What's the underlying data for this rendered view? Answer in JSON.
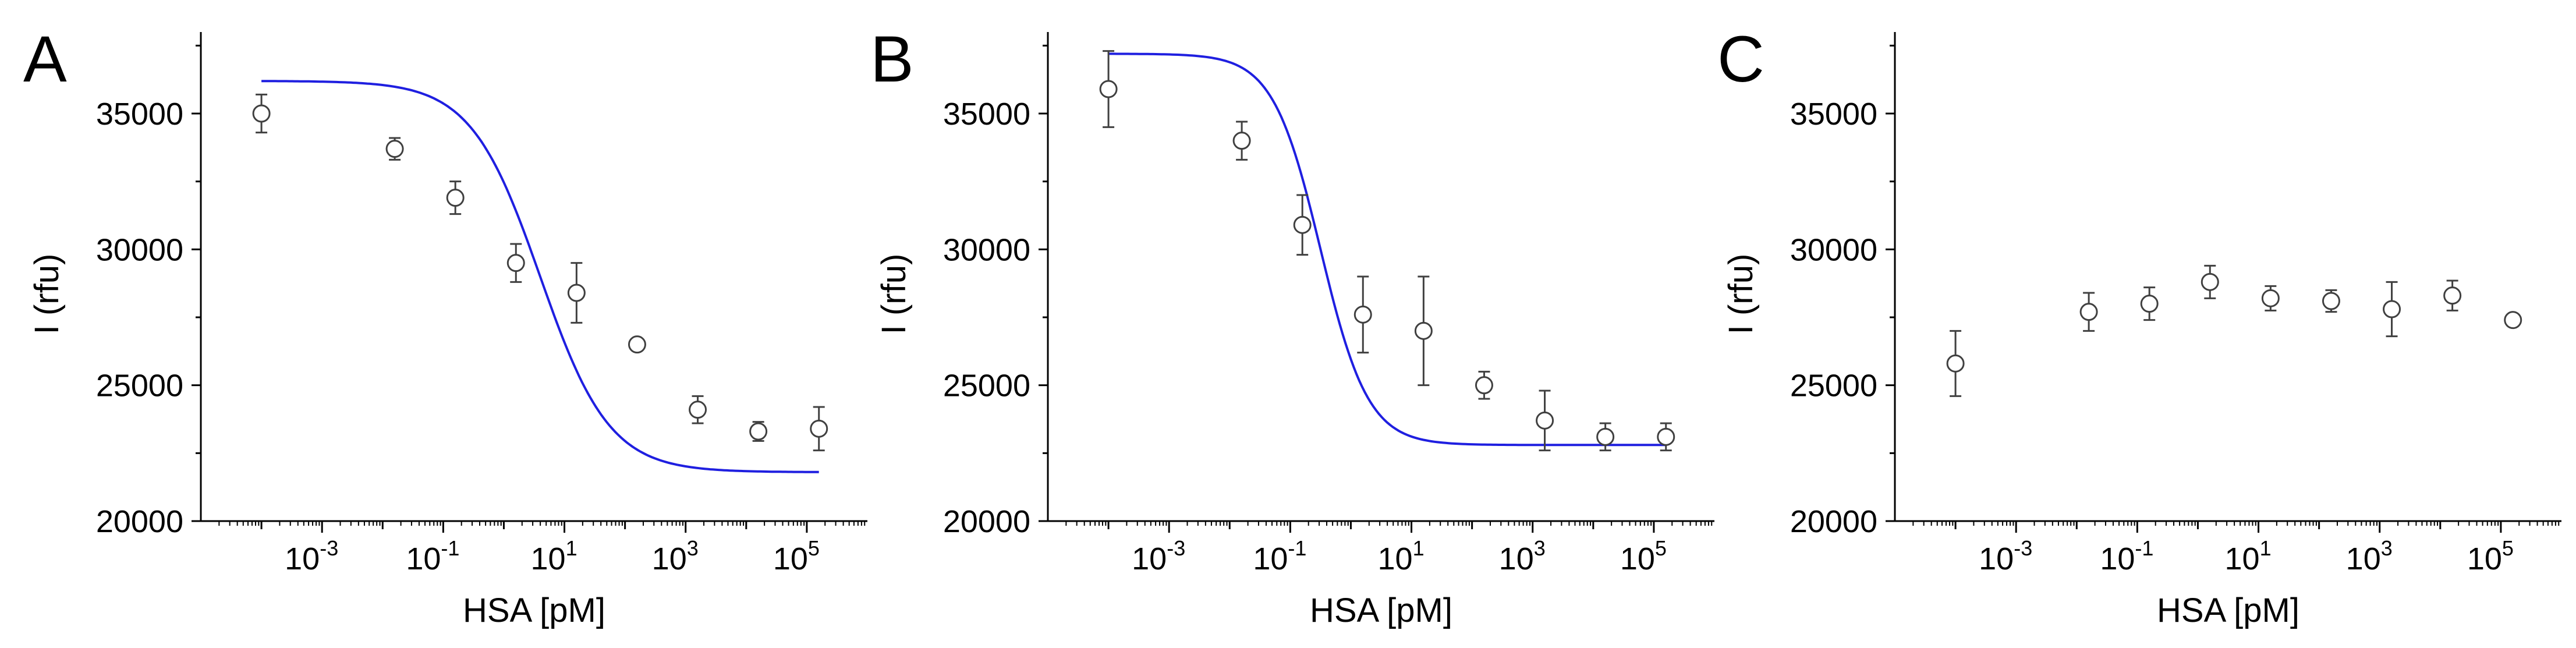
{
  "figure": {
    "x_tick_base": "10",
    "colors": {
      "fit": "#1f1fe0",
      "marker": "#404040",
      "axis": "#000000"
    }
  },
  "chart_data": [
    {
      "panel": "A",
      "type": "scatter",
      "xlabel": "HSA [pM]",
      "ylabel": "I (rfu)",
      "xscale": "log",
      "xlim_log10": [
        -5,
        6
      ],
      "ylim": [
        20000,
        38000
      ],
      "x_ticks": [
        {
          "exp": "-3",
          "log10": -3
        },
        {
          "exp": "-1",
          "log10": -1
        },
        {
          "exp": "1",
          "log10": 1
        },
        {
          "exp": "3",
          "log10": 3
        },
        {
          "exp": "5",
          "log10": 5
        }
      ],
      "y_ticks": [
        {
          "label": "20000",
          "value": 20000
        },
        {
          "label": "25000",
          "value": 25000
        },
        {
          "label": "30000",
          "value": 30000
        },
        {
          "label": "35000",
          "value": 35000
        }
      ],
      "points": [
        {
          "log10x": -4.0,
          "y": 35000,
          "err": 700
        },
        {
          "log10x": -1.8,
          "y": 33700,
          "err": 400
        },
        {
          "log10x": -0.8,
          "y": 31900,
          "err": 600
        },
        {
          "log10x": 0.2,
          "y": 29500,
          "err": 700
        },
        {
          "log10x": 1.2,
          "y": 28400,
          "err": 1100
        },
        {
          "log10x": 2.2,
          "y": 26500,
          "err": 200
        },
        {
          "log10x": 3.2,
          "y": 24100,
          "err": 500
        },
        {
          "log10x": 4.2,
          "y": 23300,
          "err": 350
        },
        {
          "log10x": 5.2,
          "y": 23400,
          "err": 800
        }
      ],
      "fit": {
        "color": "#1f1fe0",
        "top": 36200,
        "bottom": 21800,
        "log_ec50": 0.6,
        "hill": 0.33,
        "log10x_range": [
          -4.0,
          5.2
        ]
      }
    },
    {
      "panel": "B",
      "type": "scatter",
      "xlabel": "HSA [pM]",
      "ylabel": "I (rfu)",
      "xscale": "log",
      "xlim_log10": [
        -5,
        6
      ],
      "ylim": [
        20000,
        38000
      ],
      "x_ticks": [
        {
          "exp": "-3",
          "log10": -3
        },
        {
          "exp": "-1",
          "log10": -1
        },
        {
          "exp": "1",
          "log10": 1
        },
        {
          "exp": "3",
          "log10": 3
        },
        {
          "exp": "5",
          "log10": 5
        }
      ],
      "y_ticks": [
        {
          "label": "20000",
          "value": 20000
        },
        {
          "label": "25000",
          "value": 25000
        },
        {
          "label": "30000",
          "value": 30000
        },
        {
          "label": "35000",
          "value": 35000
        }
      ],
      "points": [
        {
          "log10x": -4.0,
          "y": 35900,
          "err": 1400
        },
        {
          "log10x": -1.8,
          "y": 34000,
          "err": 700
        },
        {
          "log10x": -0.8,
          "y": 30900,
          "err": 1100
        },
        {
          "log10x": 0.2,
          "y": 27600,
          "err": 1400
        },
        {
          "log10x": 1.2,
          "y": 27000,
          "err": 2000
        },
        {
          "log10x": 2.2,
          "y": 25000,
          "err": 500
        },
        {
          "log10x": 3.2,
          "y": 23700,
          "err": 1100
        },
        {
          "log10x": 4.2,
          "y": 23100,
          "err": 500
        },
        {
          "log10x": 5.2,
          "y": 23100,
          "err": 500
        }
      ],
      "fit": {
        "color": "#1f1fe0",
        "top": 37200,
        "bottom": 22800,
        "log_ec50": -0.5,
        "hill": 0.48,
        "log10x_range": [
          -4.0,
          5.2
        ]
      }
    },
    {
      "panel": "C",
      "type": "scatter",
      "xlabel": "HSA [pM]",
      "ylabel": "I (rfu)",
      "xscale": "log",
      "xlim_log10": [
        -5,
        6
      ],
      "ylim": [
        20000,
        38000
      ],
      "x_ticks": [
        {
          "exp": "-3",
          "log10": -3
        },
        {
          "exp": "-1",
          "log10": -1
        },
        {
          "exp": "1",
          "log10": 1
        },
        {
          "exp": "3",
          "log10": 3
        },
        {
          "exp": "5",
          "log10": 5
        }
      ],
      "y_ticks": [
        {
          "label": "20000",
          "value": 20000
        },
        {
          "label": "25000",
          "value": 25000
        },
        {
          "label": "30000",
          "value": 30000
        },
        {
          "label": "35000",
          "value": 35000
        }
      ],
      "points": [
        {
          "log10x": -4.0,
          "y": 25800,
          "err": 1200
        },
        {
          "log10x": -1.8,
          "y": 27700,
          "err": 700
        },
        {
          "log10x": -0.8,
          "y": 28000,
          "err": 600
        },
        {
          "log10x": 0.2,
          "y": 28800,
          "err": 600
        },
        {
          "log10x": 1.2,
          "y": 28200,
          "err": 450
        },
        {
          "log10x": 2.2,
          "y": 28100,
          "err": 400
        },
        {
          "log10x": 3.2,
          "y": 27800,
          "err": 1000
        },
        {
          "log10x": 4.2,
          "y": 28300,
          "err": 550
        },
        {
          "log10x": 5.2,
          "y": 27400,
          "err": 150
        }
      ],
      "fit": null
    }
  ]
}
